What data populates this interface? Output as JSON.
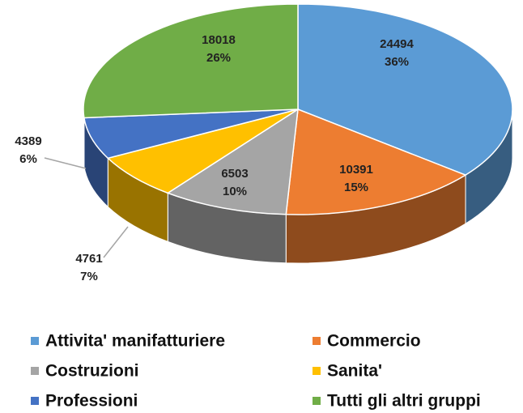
{
  "chart_data": {
    "type": "pie",
    "categories": [
      "Attivita' manifatturiere",
      "Commercio",
      "Costruzioni",
      "Sanita'",
      "Professioni",
      "Tutti gli altri gruppi"
    ],
    "values": [
      24494,
      10391,
      6503,
      4761,
      4389,
      18018
    ],
    "percent_labels": [
      "36%",
      "15%",
      "10%",
      "7%",
      "6%",
      "26%"
    ],
    "colors": [
      "#5b9bd5",
      "#ed7d31",
      "#a5a5a5",
      "#ffc000",
      "#4472c4",
      "#70ad47"
    ],
    "legend": "bottom"
  }
}
